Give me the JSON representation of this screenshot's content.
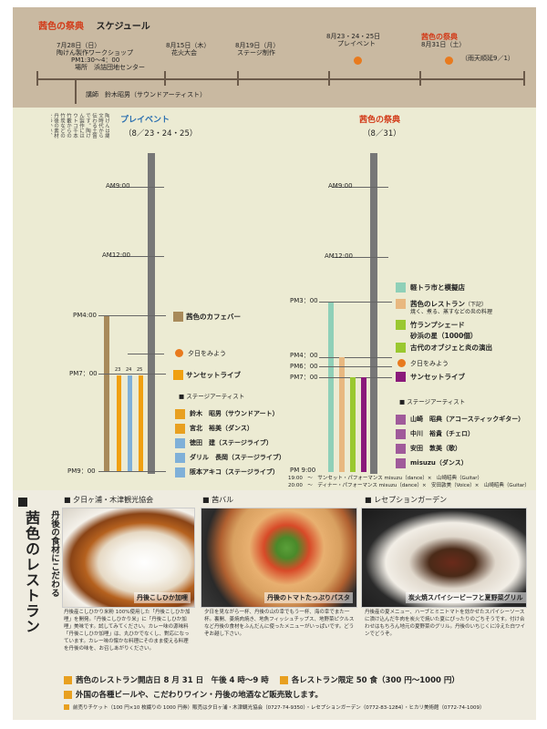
{
  "header": {
    "title_red": "茜色の祭典",
    "title_rest": "スケジュール",
    "events": [
      {
        "date": "7月28日（日）",
        "lines": [
          "陶けん製作ワークショップ",
          "PM1:30～4：00",
          "場所　浜詰団地センター"
        ]
      },
      {
        "date": "8月15日（木）",
        "lines": [
          "花火大会"
        ]
      },
      {
        "date": "8月19日（月）",
        "lines": [
          "ステージ制作"
        ]
      },
      {
        "date": "8月23・24・25日",
        "lines": [
          "プレイベント"
        ]
      },
      {
        "date": "茜色の祭典",
        "lines": [
          "8月31日（土）",
          "（雨天順延9／1）"
        ]
      }
    ],
    "lecturer": "講師　鈴木昭男（サウンドアーティスト）"
  },
  "intro_vertical": "陶けんは縄文時代から伝わる土笛です。陶けん製作にはウトコ千本竹藪からの竹炭などの丹後の素材をつかい、古代の浪漫を未来へ運ぶため、古代のロマンを大切にしています。",
  "pre_event": {
    "title": "プレイベント",
    "dates": "（8／23・24・25）",
    "times": [
      "AM9:00",
      "AM12:00",
      "PM4:00",
      "PM7：00",
      "PM9：00"
    ],
    "cafe": "茜色のカフェバー",
    "sunset": "夕日をみよう",
    "live": "サンセットライブ",
    "bar_nums": [
      "23",
      "24",
      "25"
    ],
    "stage_title": "ステージアーティスト",
    "artists": [
      {
        "name": "鈴木　昭男（サウンドアート）",
        "color": "#e8a020"
      },
      {
        "name": "宮北　裕美（ダンス）",
        "color": "#e8a020"
      },
      {
        "name": "徳田　建（ステージライブ）",
        "color": "#7fb0d8"
      },
      {
        "name": "ダリル　長岡（ステージライブ）",
        "color": "#7fb0d8"
      },
      {
        "name": "阪本アキコ（ステージライブ）",
        "color": "#7fb0d8"
      }
    ]
  },
  "festival": {
    "title": "茜色の祭典",
    "dates": "（8／31）",
    "times": [
      "AM9:00",
      "AM12:00",
      "PM3：00",
      "PM4：00",
      "PM6：00",
      "PM7：00",
      "PM 9:00"
    ],
    "items": [
      {
        "label": "軽トラ市と模擬店",
        "color": "#8fd0b8"
      },
      {
        "label": "茜色のレストラン",
        "note": "（下記）",
        "color": "#e8b880",
        "sub": "焼く、煮る、蒸すなどの炎の料理"
      },
      {
        "label": "竹ランプシェード",
        "color": "#9ac830"
      },
      {
        "label": "砂浜の星（1000個）",
        "color": ""
      },
      {
        "label": "古代のオブジェと炎の演出",
        "color": "#9ac830"
      }
    ],
    "sunset": "夕日をみよう",
    "live": "サンセットライブ",
    "live_color": "#8a1a7a",
    "stage_title": "ステージアーティスト",
    "artists": [
      {
        "name": "山崎　昭典（アコースティックギター）",
        "color": "#a05a9a"
      },
      {
        "name": "中川　裕貴（チェロ）",
        "color": "#a05a9a"
      },
      {
        "name": "安田　敦美（歌）",
        "color": "#a05a9a"
      },
      {
        "name": "misuzu（ダンス）",
        "color": "#a05a9a"
      }
    ],
    "footer1": "19:00　～　サンセット・パフォーマンス misuzu（dance）×　山崎昭典（Guitar）",
    "footer2": "20:00　～　ディナー・パフォーマンス misuzu（dance）×　安田敦美（Voice）×　山崎昭典（Guitar）"
  },
  "restaurant": {
    "vtitle1": "丹後の食材にこだわる",
    "vtitle2": "茜色のレストラン",
    "sections": [
      {
        "title": "夕日ヶ浦・木津観光協会",
        "dish": "丹後こしひか加哩",
        "desc": "丹後産こしひかり米粉 100%使用した「丹後こしひか加哩」を開発。「丹後こしひかり米」に「丹後こしひか加哩」美味です。試してみてください。カレー味の源味料「丹後こしひか加哩」は、丸ひかでなくし、對応になっています。カレー味の懐かな料理にそのまま使える料理を丹後の味を、お召しあがりください。"
      },
      {
        "title": "茜バル",
        "dish": "丹後のトマトたっぷりパスタ",
        "desc": "夕日を見ながら一杯、丹後の山の幸でもう一杯、海の幸でまた一杯。裏開、姜焼肉焼き、地魚フィッシュチップス、地野菜ピクルスなど丹後の食材をふんだんに使ったメニューがいっぱいです。どうぞお越し下さい。"
      },
      {
        "title": "レセプションガーデン",
        "dish": "炭火焼スパイシービーフと夏野菜グリル",
        "desc": "丹後産の夏メニュー、ハーブとミニトマトを効かせたスパイシーソースに漬け込んだ牛肉を炭火で焼いた夏にぴったりのごちそうです。付け合わせはもちろん地元の夏野菜のグリル。丹後のいちじくに冷えた白ワインでどうぞ。"
      }
    ]
  },
  "footer": {
    "line1a": "茜色のレストラン開店日 8 月 31 日　午後 4 時～9 時",
    "line1b": "各レストラン限定 50 食（300 円～1000 円）",
    "line2": "外国の各種ビールや、こだわりワイン・丹後の地酒など販売致します。",
    "line3": "前売りチケット（100 円×10 枚綴りの 1000 円券）販売は夕日ヶ浦・木津観光協会（0727-74-9350）・レセプションガーデン（0772-83-1284）・ヒカリ美術館（0772-74-1009）"
  },
  "colors": {
    "accent": "#d23a18",
    "dot": "#e87a1e",
    "axis": "#777777"
  }
}
